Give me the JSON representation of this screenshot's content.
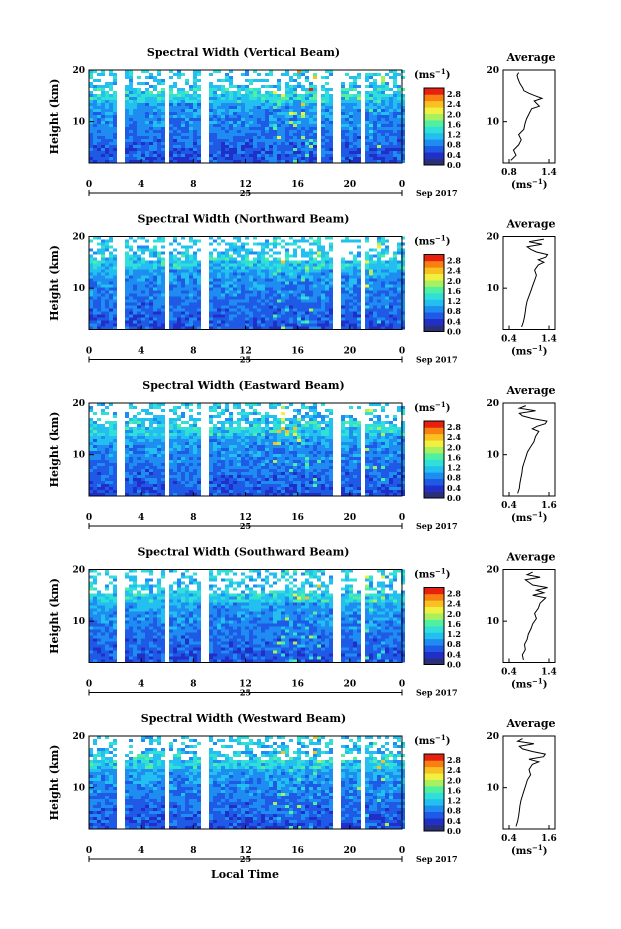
{
  "figure": {
    "xlabel": "Local Time",
    "date_label": "Sep 2017",
    "day_label": "25"
  },
  "colorbar": {
    "unit": "(ms",
    "unit_exp": "−1",
    "unit_close": ")",
    "ticks": [
      "2.8",
      "2.4",
      "2.0",
      "1.6",
      "1.2",
      "0.8",
      "0.4",
      "0.0"
    ],
    "colors": [
      "#2a2f7a",
      "#1f2fc8",
      "#1f5ae6",
      "#1e8cf0",
      "#22bff0",
      "#30e0d8",
      "#50f0a0",
      "#a8f060",
      "#f0f040",
      "#f8c020",
      "#f88010",
      "#e82010"
    ]
  },
  "chart_data": [
    {
      "type": "heatmap",
      "title": "Spectral Width (Vertical Beam)",
      "ylabel": "Height (km)",
      "x_ticks": [
        "0",
        "4",
        "8",
        "12",
        "16",
        "20",
        "0"
      ],
      "y_ticks": [
        "20",
        "10"
      ],
      "xlim": [
        0,
        24
      ],
      "ylim": [
        2,
        20
      ],
      "zlim": [
        0.0,
        2.8
      ],
      "unit": "ms-1",
      "data_gaps_hours": [
        [
          2.0,
          2.6
        ],
        [
          5.7,
          6.0
        ],
        [
          8.5,
          9.0
        ],
        [
          17.3,
          17.7
        ],
        [
          18.7,
          19.1
        ],
        [
          20.6,
          20.9
        ]
      ],
      "profile": {
        "title": "Average",
        "x_ticks": [
          "0.8",
          "1.4"
        ],
        "xlim": [
          0.6,
          1.6
        ],
        "y_ticks": [
          "20",
          "10"
        ],
        "ylim": [
          2,
          20
        ],
        "unit": "ms-1",
        "heights": [
          2.5,
          3.5,
          4.5,
          5.5,
          6.5,
          7.5,
          8.5,
          9.5,
          10.5,
          11.5,
          12.5,
          13.0,
          13.5,
          14.0,
          14.5,
          15.0,
          15.5,
          16.0,
          16.5,
          17.0,
          17.5,
          18.0,
          18.5,
          19.0,
          19.5
        ],
        "values": [
          0.75,
          0.85,
          0.8,
          0.9,
          0.95,
          0.9,
          1.0,
          1.02,
          1.05,
          1.1,
          1.15,
          1.3,
          1.25,
          1.2,
          1.35,
          1.22,
          1.1,
          1.0,
          0.98,
          0.95,
          0.92,
          0.9,
          0.88,
          0.87,
          0.9
        ]
      }
    },
    {
      "type": "heatmap",
      "title": "Spectral Width (Northward Beam)",
      "ylabel": "Height (km)",
      "x_ticks": [
        "0",
        "4",
        "8",
        "12",
        "16",
        "20",
        "0"
      ],
      "y_ticks": [
        "20",
        "10"
      ],
      "xlim": [
        0,
        24
      ],
      "ylim": [
        2,
        20
      ],
      "zlim": [
        0.0,
        2.8
      ],
      "unit": "ms-1",
      "data_gaps_hours": [
        [
          2.0,
          2.6
        ],
        [
          5.7,
          6.0
        ],
        [
          8.5,
          9.0
        ],
        [
          18.7,
          19.1
        ],
        [
          20.6,
          20.9
        ]
      ],
      "profile": {
        "title": "Average",
        "x_ticks": [
          "0.4",
          "1.4"
        ],
        "xlim": [
          0.2,
          1.6
        ],
        "y_ticks": [
          "20",
          "10"
        ],
        "ylim": [
          2,
          20
        ],
        "unit": "ms-1",
        "heights": [
          2.5,
          3.5,
          4.5,
          5.5,
          6.5,
          7.5,
          8.5,
          9.5,
          10.5,
          11.5,
          12.5,
          13.5,
          14.5,
          15.0,
          15.5,
          16.0,
          16.5,
          17.0,
          17.5,
          18.0,
          18.5,
          19.0,
          19.5
        ],
        "values": [
          0.7,
          0.75,
          0.78,
          0.8,
          0.82,
          0.85,
          0.9,
          0.95,
          1.0,
          1.05,
          1.1,
          1.05,
          1.15,
          1.3,
          1.15,
          1.35,
          1.4,
          1.1,
          0.95,
          0.85,
          1.25,
          0.9,
          1.3
        ]
      }
    },
    {
      "type": "heatmap",
      "title": "Spectral Width (Eastward Beam)",
      "ylabel": "Height (km)",
      "x_ticks": [
        "0",
        "4",
        "8",
        "12",
        "16",
        "20",
        "0"
      ],
      "y_ticks": [
        "20",
        "10"
      ],
      "xlim": [
        0,
        24
      ],
      "ylim": [
        2,
        20
      ],
      "zlim": [
        0.0,
        2.8
      ],
      "unit": "ms-1",
      "data_gaps_hours": [
        [
          2.0,
          2.6
        ],
        [
          5.7,
          6.0
        ],
        [
          8.5,
          9.0
        ],
        [
          18.7,
          19.1
        ],
        [
          20.6,
          20.9
        ]
      ],
      "profile": {
        "title": "Average",
        "x_ticks": [
          "0.4",
          "1.6"
        ],
        "xlim": [
          0.2,
          1.8
        ],
        "y_ticks": [
          "20",
          "10"
        ],
        "ylim": [
          2,
          20
        ],
        "unit": "ms-1",
        "heights": [
          2.5,
          3.5,
          4.5,
          5.5,
          6.5,
          7.5,
          8.5,
          9.5,
          10.5,
          11.5,
          12.5,
          13.5,
          14.5,
          15.0,
          15.5,
          16.0,
          16.5,
          17.0,
          17.5,
          18.0,
          18.5,
          19.0,
          19.5
        ],
        "values": [
          0.65,
          0.7,
          0.72,
          0.75,
          0.78,
          0.8,
          0.85,
          0.9,
          0.95,
          1.05,
          1.15,
          1.2,
          1.3,
          1.1,
          1.25,
          1.5,
          1.55,
          1.1,
          0.8,
          0.7,
          1.2,
          0.7,
          0.9
        ]
      }
    },
    {
      "type": "heatmap",
      "title": "Spectral Width (Southward Beam)",
      "ylabel": "Height (km)",
      "x_ticks": [
        "0",
        "4",
        "8",
        "12",
        "16",
        "20",
        "0"
      ],
      "y_ticks": [
        "20",
        "10"
      ],
      "xlim": [
        0,
        24
      ],
      "ylim": [
        2,
        20
      ],
      "zlim": [
        0.0,
        2.8
      ],
      "unit": "ms-1",
      "data_gaps_hours": [
        [
          2.0,
          2.6
        ],
        [
          5.7,
          6.0
        ],
        [
          8.5,
          9.0
        ],
        [
          18.7,
          19.1
        ],
        [
          20.6,
          20.9
        ]
      ],
      "profile": {
        "title": "Average",
        "x_ticks": [
          "0.4",
          "1.4"
        ],
        "xlim": [
          0.2,
          1.6
        ],
        "y_ticks": [
          "20",
          "10"
        ],
        "ylim": [
          2,
          20
        ],
        "unit": "ms-1",
        "heights": [
          2.5,
          3.5,
          4.5,
          5.5,
          6.5,
          7.5,
          8.5,
          9.5,
          10.5,
          11.5,
          12.5,
          13.5,
          14.5,
          15.0,
          15.5,
          16.0,
          16.5,
          17.0,
          17.5,
          18.0,
          18.5,
          19.0,
          19.5
        ],
        "values": [
          0.75,
          0.72,
          0.8,
          0.78,
          0.85,
          0.88,
          0.95,
          1.0,
          1.1,
          1.05,
          1.15,
          1.2,
          1.35,
          1.0,
          1.3,
          1.1,
          1.4,
          1.0,
          0.9,
          0.8,
          1.2,
          0.85,
          1.0
        ]
      }
    },
    {
      "type": "heatmap",
      "title": "Spectral Width (Westward Beam)",
      "ylabel": "Height (km)",
      "x_ticks": [
        "0",
        "4",
        "8",
        "12",
        "16",
        "20",
        "0"
      ],
      "y_ticks": [
        "20",
        "10"
      ],
      "xlim": [
        0,
        24
      ],
      "ylim": [
        2,
        20
      ],
      "zlim": [
        0.0,
        2.8
      ],
      "unit": "ms-1",
      "data_gaps_hours": [
        [
          2.0,
          2.6
        ],
        [
          5.7,
          6.0
        ],
        [
          8.5,
          9.0
        ],
        [
          18.7,
          19.1
        ],
        [
          20.6,
          20.9
        ]
      ],
      "profile": {
        "title": "Average",
        "x_ticks": [
          "0.4",
          "1.6"
        ],
        "xlim": [
          0.2,
          1.8
        ],
        "y_ticks": [
          "20",
          "10"
        ],
        "ylim": [
          2,
          20
        ],
        "unit": "ms-1",
        "heights": [
          2.5,
          3.5,
          4.5,
          5.5,
          6.5,
          7.5,
          8.5,
          9.5,
          10.5,
          11.5,
          12.5,
          13.5,
          14.5,
          15.0,
          15.5,
          16.0,
          16.5,
          17.0,
          17.5,
          18.0,
          18.5,
          19.0,
          19.5
        ],
        "values": [
          0.6,
          0.65,
          0.68,
          0.7,
          0.72,
          0.75,
          0.8,
          0.85,
          0.9,
          0.95,
          1.05,
          1.0,
          1.1,
          1.3,
          1.0,
          1.45,
          1.5,
          1.1,
          0.8,
          0.7,
          1.15,
          0.65,
          0.8
        ]
      }
    }
  ]
}
